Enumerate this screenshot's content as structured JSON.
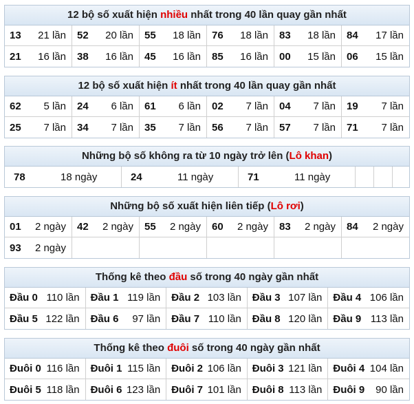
{
  "sections": [
    {
      "title": {
        "before": "12 bộ số xuất hiện ",
        "highlight": "nhiều",
        "after": " nhất trong 40 lần quay gần nhất"
      },
      "rows": [
        [
          {
            "number": "13",
            "count": "21 lần"
          },
          {
            "number": "52",
            "count": "20 lần"
          },
          {
            "number": "55",
            "count": "18 lần"
          },
          {
            "number": "76",
            "count": "18 lần"
          },
          {
            "number": "83",
            "count": "18 lần"
          },
          {
            "number": "84",
            "count": "17 lần"
          }
        ],
        [
          {
            "number": "21",
            "count": "16 lần"
          },
          {
            "number": "38",
            "count": "16 lần"
          },
          {
            "number": "45",
            "count": "16 lần"
          },
          {
            "number": "85",
            "count": "16 lần"
          },
          {
            "number": "00",
            "count": "15 lần"
          },
          {
            "number": "06",
            "count": "15 lần"
          }
        ]
      ]
    },
    {
      "title": {
        "before": "12 bộ số xuất hiện ",
        "highlight": "ít",
        "after": " nhất trong 40 lần quay gần nhất"
      },
      "rows": [
        [
          {
            "number": "62",
            "count": "5 lần"
          },
          {
            "number": "24",
            "count": "6 lần"
          },
          {
            "number": "61",
            "count": "6 lần"
          },
          {
            "number": "02",
            "count": "7 lần"
          },
          {
            "number": "04",
            "count": "7 lần"
          },
          {
            "number": "19",
            "count": "7 lần"
          }
        ],
        [
          {
            "number": "25",
            "count": "7 lần"
          },
          {
            "number": "34",
            "count": "7 lần"
          },
          {
            "number": "35",
            "count": "7 lần"
          },
          {
            "number": "56",
            "count": "7 lần"
          },
          {
            "number": "57",
            "count": "7 lần"
          },
          {
            "number": "71",
            "count": "7 lần"
          }
        ]
      ]
    },
    {
      "title": {
        "before": "Những bộ số không ra từ 10 ngày trở lên (",
        "highlight": "Lô khan",
        "after": ")"
      },
      "rows": [
        [
          {
            "number": "78",
            "count": "18 ngày"
          },
          {
            "number": "24",
            "count": "11 ngày"
          },
          {
            "number": "71",
            "count": "11 ngày"
          }
        ]
      ]
    },
    {
      "title": {
        "before": "Những bộ số xuất hiện liên tiếp (",
        "highlight": "Lô rơi",
        "after": ")"
      },
      "rows": [
        [
          {
            "number": "01",
            "count": "2 ngày"
          },
          {
            "number": "42",
            "count": "2 ngày"
          },
          {
            "number": "55",
            "count": "2 ngày"
          },
          {
            "number": "60",
            "count": "2 ngày"
          },
          {
            "number": "83",
            "count": "2 ngày"
          },
          {
            "number": "84",
            "count": "2 ngày"
          }
        ],
        [
          {
            "number": "93",
            "count": "2 ngày"
          }
        ]
      ]
    },
    {
      "title": {
        "before": "Thống kê theo ",
        "highlight": "đầu",
        "after": " số trong 40 ngày gần nhất"
      },
      "rows": [
        [
          {
            "number": "Đầu 0",
            "count": "110 lần"
          },
          {
            "number": "Đầu 1",
            "count": "119 lần"
          },
          {
            "number": "Đầu 2",
            "count": "103 lần"
          },
          {
            "number": "Đầu 3",
            "count": "107 lần"
          },
          {
            "number": "Đầu 4",
            "count": "106 lần"
          }
        ],
        [
          {
            "number": "Đầu 5",
            "count": "122 lần"
          },
          {
            "number": "Đầu 6",
            "count": "97 lần"
          },
          {
            "number": "Đầu 7",
            "count": "110 lần"
          },
          {
            "number": "Đầu 8",
            "count": "120 lần"
          },
          {
            "number": "Đầu 9",
            "count": "113 lần"
          }
        ]
      ]
    },
    {
      "title": {
        "before": "Thống kê theo ",
        "highlight": "đuôi",
        "after": " số trong 40 ngày gần nhất"
      },
      "rows": [
        [
          {
            "number": "Đuôi 0",
            "count": "116 lần"
          },
          {
            "number": "Đuôi 1",
            "count": "115 lần"
          },
          {
            "number": "Đuôi 2",
            "count": "106 lần"
          },
          {
            "number": "Đuôi 3",
            "count": "121 lần"
          },
          {
            "number": "Đuôi 4",
            "count": "104 lần"
          }
        ],
        [
          {
            "number": "Đuôi 5",
            "count": "118 lần"
          },
          {
            "number": "Đuôi 6",
            "count": "123 lần"
          },
          {
            "number": "Đuôi 7",
            "count": "101 lần"
          },
          {
            "number": "Đuôi 8",
            "count": "113 lần"
          },
          {
            "number": "Đuôi 9",
            "count": "90 lần"
          }
        ]
      ]
    }
  ]
}
